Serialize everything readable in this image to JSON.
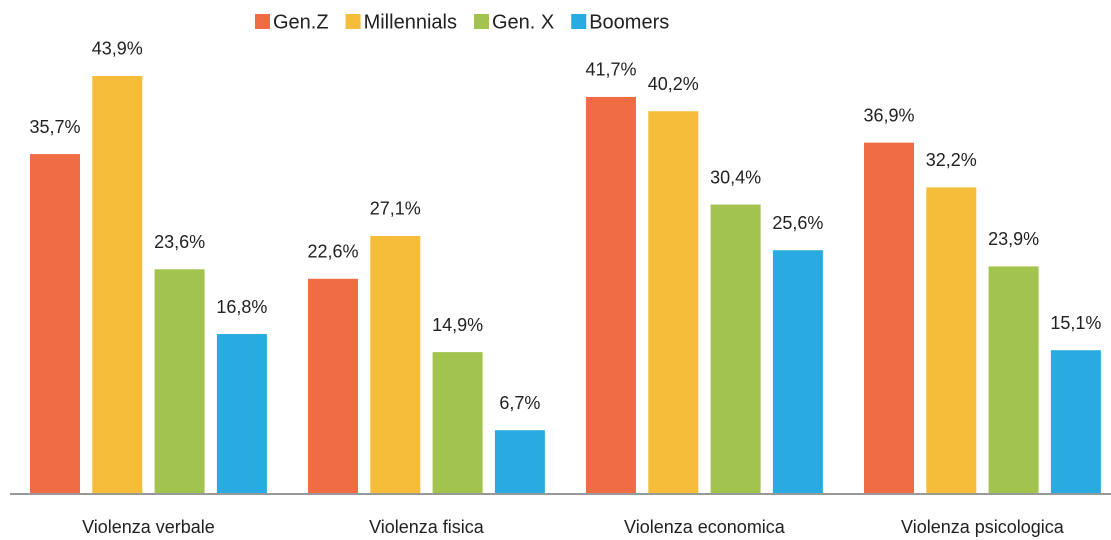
{
  "chart_data": {
    "type": "bar",
    "categories": [
      "Violenza verbale",
      "Violenza fisica",
      "Violenza economica",
      "Violenza psicologica"
    ],
    "series": [
      {
        "name": "Gen.Z",
        "color": "#ef6c45",
        "values": [
          35.7,
          22.6,
          41.7,
          36.9
        ],
        "value_labels": [
          "35,7%",
          "22,6%",
          "41,7%",
          "36,9%"
        ]
      },
      {
        "name": "Millennials",
        "color": "#f6bd3a",
        "values": [
          43.9,
          27.1,
          40.2,
          32.2
        ],
        "value_labels": [
          "43,9%",
          "27,1%",
          "40,2%",
          "32,2%"
        ]
      },
      {
        "name": "Gen. X",
        "color": "#a3c34f",
        "values": [
          23.6,
          14.9,
          30.4,
          23.9
        ],
        "value_labels": [
          "23,6%",
          "14,9%",
          "30,4%",
          "23,9%"
        ]
      },
      {
        "name": "Boomers",
        "color": "#29abe2",
        "values": [
          16.8,
          6.7,
          25.6,
          15.1
        ],
        "value_labels": [
          "16,8%",
          "6,7%",
          "25,6%",
          "15,1%"
        ]
      }
    ],
    "ylim": [
      0,
      46
    ],
    "legend": "top"
  }
}
